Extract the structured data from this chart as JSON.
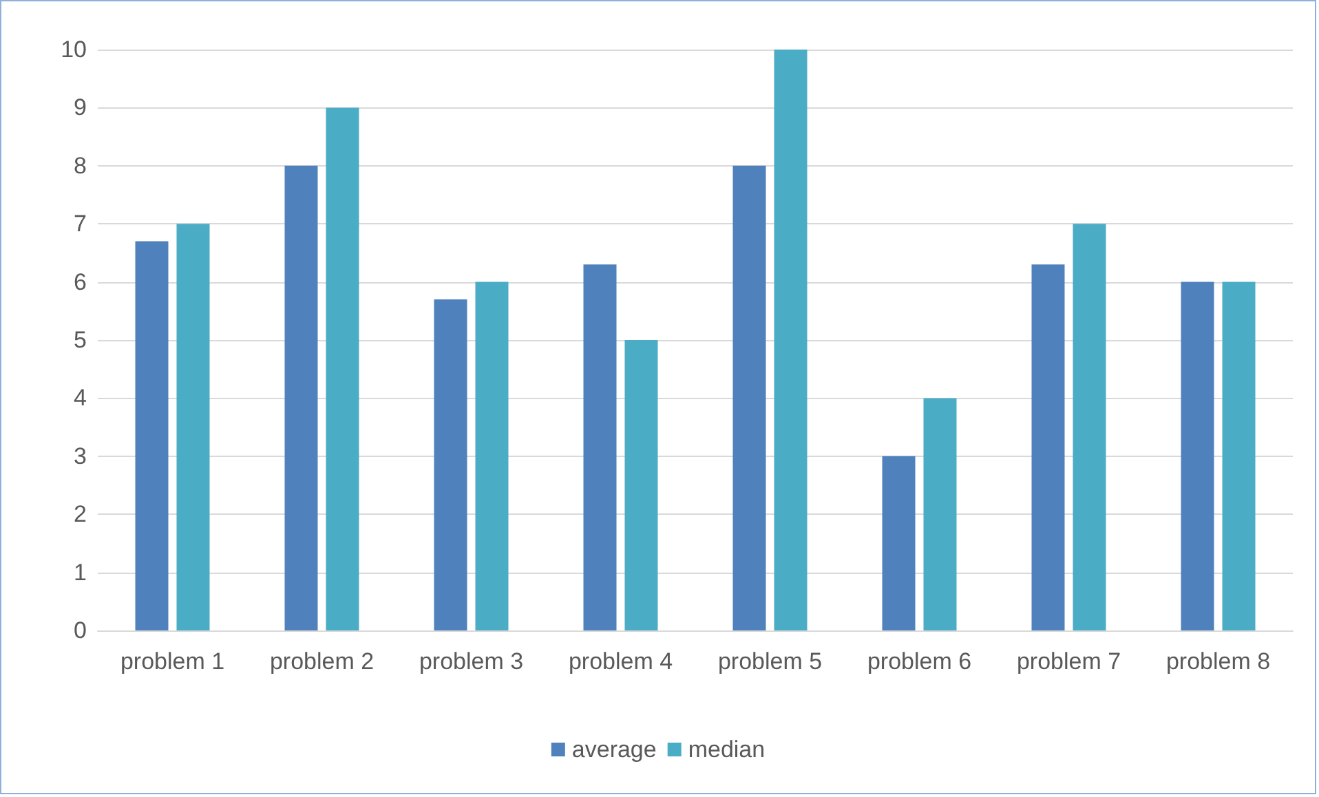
{
  "chart_data": {
    "type": "bar",
    "categories": [
      "problem 1",
      "problem 2",
      "problem 3",
      "problem 4",
      "problem 5",
      "problem 6",
      "problem 7",
      "problem 8"
    ],
    "series": [
      {
        "name": "average",
        "color": "#4f81bd",
        "values": [
          6.7,
          8,
          5.7,
          6.3,
          8,
          3,
          6.3,
          6
        ]
      },
      {
        "name": "median",
        "color": "#4bacc6",
        "values": [
          7,
          9,
          6,
          5,
          10,
          4,
          7,
          6
        ]
      }
    ],
    "ylim": [
      0,
      10
    ],
    "yticks": [
      0,
      1,
      2,
      3,
      4,
      5,
      6,
      7,
      8,
      9,
      10
    ],
    "grid": "y",
    "legend": "bottom"
  }
}
